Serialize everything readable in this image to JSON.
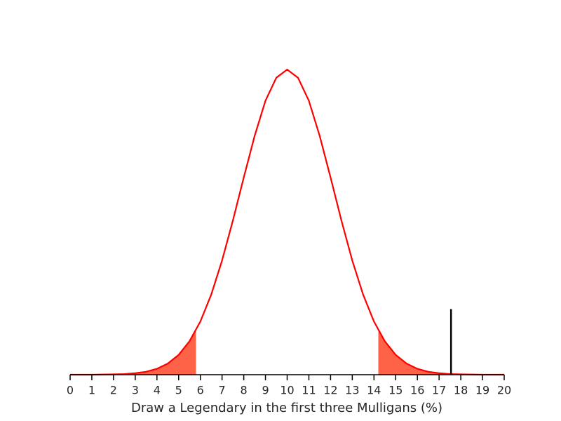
{
  "chart_data": {
    "type": "area",
    "xlabel": "Draw a Legendary in the first three Mulligans (%)",
    "xlim": [
      0,
      20
    ],
    "xticks": [
      0,
      1,
      2,
      3,
      4,
      5,
      6,
      7,
      8,
      9,
      10,
      11,
      12,
      13,
      14,
      15,
      16,
      17,
      18,
      19,
      20
    ],
    "ylim": [
      0,
      0.1976
    ],
    "series": [
      {
        "color": "#ff0000",
        "x": [
          0,
          0.5,
          1,
          1.5,
          2,
          2.5,
          3,
          3.5,
          4,
          4.5,
          5,
          5.5,
          6,
          6.5,
          7,
          7.5,
          8,
          8.5,
          9,
          9.5,
          10,
          10.5,
          11,
          11.5,
          12,
          12.5,
          13,
          13.5,
          14,
          14.5,
          15,
          15.5,
          16,
          16.5,
          17,
          17.5,
          18,
          18.5,
          19,
          19.5,
          20
        ],
        "values": [
          0,
          0,
          0,
          0.0001,
          0.0002,
          0.0004,
          0.0009,
          0.0018,
          0.0036,
          0.0068,
          0.0121,
          0.0204,
          0.0324,
          0.0488,
          0.0696,
          0.094,
          0.1202,
          0.1455,
          0.167,
          0.181,
          0.186,
          0.181,
          0.167,
          0.1455,
          0.1202,
          0.094,
          0.0696,
          0.0488,
          0.0324,
          0.0204,
          0.0121,
          0.0068,
          0.0036,
          0.0018,
          0.0009,
          0.0004,
          0.0002,
          0.0001,
          0,
          0,
          0
        ]
      }
    ],
    "shaded": [
      {
        "color": "#ff6347",
        "x": [
          0,
          0.5,
          1,
          1.5,
          2,
          2.5,
          3,
          3.5,
          4,
          4.5,
          5,
          5.5,
          5.8
        ],
        "values": [
          0,
          0,
          0,
          0.0001,
          0.0002,
          0.0004,
          0.0009,
          0.0018,
          0.0036,
          0.0068,
          0.0121,
          0.0204,
          0.0271
        ]
      },
      {
        "color": "#ff6347",
        "x": [
          14.2,
          14.5,
          15,
          15.5,
          16,
          16.5,
          17,
          17.5,
          18,
          18.5,
          19,
          19.5,
          20
        ],
        "values": [
          0.0271,
          0.0204,
          0.0121,
          0.0068,
          0.0036,
          0.0018,
          0.0009,
          0.0004,
          0.0002,
          0.0001,
          0,
          0,
          0
        ]
      }
    ],
    "marker": {
      "x": 17.55,
      "height": 0.04,
      "color": "#000000"
    }
  }
}
